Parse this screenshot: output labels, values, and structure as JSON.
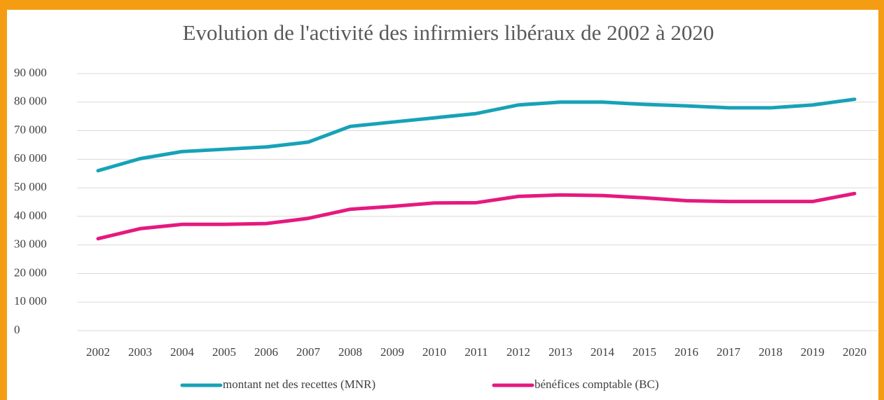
{
  "chart_data": {
    "type": "line",
    "title": "Evolution de l'activité des infirmiers libéraux de 2002 à 2020",
    "categories": [
      "2002",
      "2003",
      "2004",
      "2005",
      "2006",
      "2007",
      "2008",
      "2009",
      "2010",
      "2011",
      "2012",
      "2013",
      "2014",
      "2015",
      "2016",
      "2017",
      "2018",
      "2019",
      "2020"
    ],
    "series": [
      {
        "name": "montant net des recettes (MNR)",
        "color": "#17a2b8",
        "values": [
          56000,
          60200,
          62700,
          63500,
          64300,
          66000,
          71500,
          73000,
          74500,
          76000,
          79000,
          80000,
          80000,
          79200,
          78700,
          78000,
          78000,
          79000,
          81000
        ]
      },
      {
        "name": "bénéfices comptable (BC)",
        "color": "#e5197f",
        "values": [
          32200,
          35700,
          37200,
          37200,
          37500,
          39300,
          42500,
          43500,
          44700,
          44800,
          47000,
          47500,
          47300,
          46500,
          45500,
          45200,
          45200,
          45200,
          48000
        ]
      }
    ],
    "ylim": [
      0,
      90000
    ],
    "yticks": [
      {
        "value": 0,
        "label": "0"
      },
      {
        "value": 10000,
        "label": "10 000"
      },
      {
        "value": 20000,
        "label": "20 000"
      },
      {
        "value": 30000,
        "label": "30 000"
      },
      {
        "value": 40000,
        "label": "40 000"
      },
      {
        "value": 50000,
        "label": "50 000"
      },
      {
        "value": 60000,
        "label": "60 000"
      },
      {
        "value": 70000,
        "label": "70 000"
      },
      {
        "value": 80000,
        "label": "80 000"
      },
      {
        "value": 90000,
        "label": "90 000"
      }
    ],
    "grid": true,
    "legend": "bottom"
  }
}
